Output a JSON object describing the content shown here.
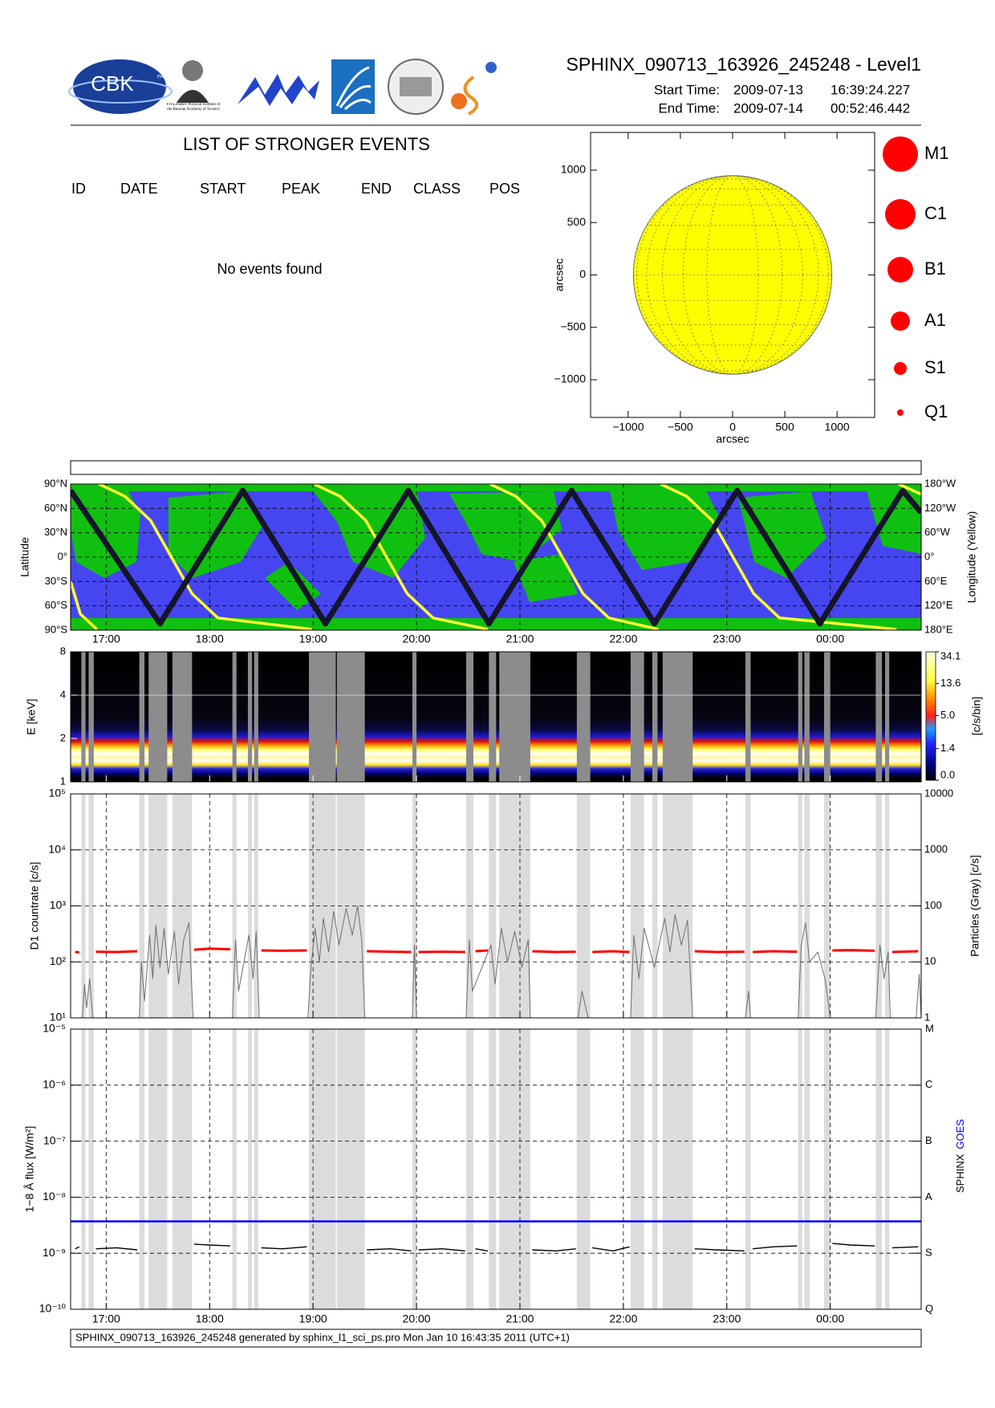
{
  "header": {
    "title": "SPHINX_090713_163926_245248 - Level1",
    "start_label": "Start Time:",
    "start_date": "2009-07-13",
    "start_time": "16:39:24.227",
    "end_label": "End Time:",
    "end_date": "2009-07-14",
    "end_time": "00:52:46.442",
    "logo_cbk": "CBK",
    "logo_pan": "PAN",
    "logo_lebedev": "P.N.Lebedev Physical Institute of the Russian Academy of Science"
  },
  "events": {
    "title": "LIST OF STRONGER EVENTS",
    "columns": [
      "ID",
      "DATE",
      "START",
      "PEAK",
      "END",
      "CLASS",
      "POS"
    ],
    "message": "No events found"
  },
  "sun_map": {
    "xlim": [
      -1360,
      1360
    ],
    "ylim": [
      -1360,
      1360
    ],
    "xticks": [
      {
        "value": -1000,
        "label": "−1000"
      },
      {
        "value": -500,
        "label": "−500"
      },
      0,
      500,
      1000
    ],
    "yticks": [
      1000,
      500,
      0,
      {
        "value": -500,
        "label": "−500"
      },
      {
        "value": -1000,
        "label": "−1000"
      }
    ],
    "xlabel": "arcsec",
    "ylabel": "arcsec",
    "radius": 950,
    "disk_color": "#ffff00",
    "legend": [
      "M1",
      "C1",
      "B1",
      "A1",
      "S1",
      "Q1"
    ],
    "legend_color": "#ff0000"
  },
  "time_axis": {
    "xlim": [
      16.656,
      24.879
    ],
    "xticks": [
      {
        "value": 17,
        "label": "17:00"
      },
      {
        "value": 18,
        "label": "18:00"
      },
      {
        "value": 19,
        "label": "19:00"
      },
      {
        "value": 20,
        "label": "20:00"
      },
      {
        "value": 21,
        "label": "21:00"
      },
      {
        "value": 22,
        "label": "22:00"
      },
      {
        "value": 23,
        "label": "23:00"
      },
      {
        "value": 24,
        "label": "00:00"
      }
    ]
  },
  "data_gaps": [
    [
      16.76,
      16.8
    ],
    [
      16.83,
      16.88
    ],
    [
      17.32,
      17.37
    ],
    [
      17.41,
      17.59
    ],
    [
      17.64,
      17.83
    ],
    [
      18.22,
      18.26
    ],
    [
      18.37,
      18.41
    ],
    [
      18.43,
      18.47
    ],
    [
      18.96,
      19.22
    ],
    [
      19.23,
      19.5
    ],
    [
      19.96,
      20.0
    ],
    [
      20.48,
      20.55
    ],
    [
      20.7,
      20.77
    ],
    [
      20.8,
      21.1
    ],
    [
      21.55,
      21.68
    ],
    [
      22.07,
      22.2
    ],
    [
      22.28,
      22.33
    ],
    [
      22.38,
      22.67
    ],
    [
      23.18,
      23.23
    ],
    [
      23.69,
      23.73
    ],
    [
      23.75,
      23.8
    ],
    [
      23.94,
      24.0
    ],
    [
      24.44,
      24.5
    ],
    [
      24.53,
      24.57
    ]
  ],
  "orbit": {
    "ylabel": "Latitude",
    "y2label": "Longitude (Yellow)",
    "ylim": [
      -90,
      90
    ],
    "yticks": [
      {
        "value": 90,
        "label": "90°N"
      },
      {
        "value": 60,
        "label": "60°N"
      },
      {
        "value": 30,
        "label": "30°N"
      },
      {
        "value": 0,
        "label": "0°"
      },
      {
        "value": -30,
        "label": "30°S"
      },
      {
        "value": -60,
        "label": "60°S"
      },
      {
        "value": -90,
        "label": "90°S"
      }
    ],
    "y2lim": [
      -180,
      180
    ],
    "y2ticks": [
      {
        "value": 180,
        "label": "180°W"
      },
      {
        "value": 120,
        "label": "120°W"
      },
      {
        "value": 60,
        "label": "60°W"
      },
      {
        "value": 0,
        "label": "0°"
      },
      {
        "value": -60,
        "label": "60°E"
      },
      {
        "value": -120,
        "label": "120°E"
      },
      {
        "value": -180,
        "label": "180°E"
      }
    ],
    "track": {
      "color": "#15152a",
      "x": [
        16.656,
        17.52,
        18.32,
        19.12,
        19.92,
        20.7,
        21.5,
        22.3,
        23.1,
        23.9,
        24.7,
        24.879
      ],
      "values": [
        82,
        -82,
        82,
        -82,
        82,
        -82,
        82,
        -82,
        82,
        -82,
        82,
        55
      ]
    },
    "longitude": {
      "color": "#ffff33",
      "axis": "y2",
      "x": [
        16.656,
        16.75,
        16.91,
        16.92,
        16.93,
        17.18,
        17.43,
        17.63,
        17.83,
        18.08,
        18.99,
        19.0,
        19.01,
        19.26,
        19.51,
        19.71,
        19.91,
        20.16,
        20.69,
        20.7,
        20.71,
        20.96,
        21.21,
        21.41,
        21.61,
        21.86,
        22.34,
        22.35,
        22.36,
        22.61,
        22.86,
        23.06,
        23.26,
        23.51,
        24.64,
        24.65,
        24.66,
        24.879
      ],
      "values": [
        -60,
        -140,
        -178,
        null,
        180,
        150,
        90,
        0,
        -90,
        -150,
        -178,
        null,
        180,
        150,
        90,
        0,
        -90,
        -150,
        -178,
        null,
        180,
        150,
        90,
        0,
        -90,
        -150,
        -178,
        null,
        180,
        150,
        90,
        0,
        -90,
        -150,
        -178,
        null,
        180,
        155
      ]
    }
  },
  "spectrum": {
    "ylabel": "E [keV]",
    "ylim": [
      1,
      8
    ],
    "yticks": [
      8,
      4,
      2,
      1
    ],
    "colorbar_label": "[c/s/bin]",
    "cbar_lim": [
      0,
      34.1
    ],
    "cbar_ticks": [
      34.1,
      13.6,
      {
        "value": 5,
        "label": "5.0"
      },
      1.4,
      {
        "value": 0,
        "label": "0.0"
      }
    ]
  },
  "countrate": {
    "ylabel": "D1 countrate [c/s]",
    "y2label": "Particles (Gray) [c/s]",
    "ylim": [
      10,
      100000
    ],
    "yticks": [
      {
        "value": 100000,
        "label": "10⁵"
      },
      {
        "value": 10000,
        "label": "10⁴"
      },
      {
        "value": 1000,
        "label": "10³"
      },
      {
        "value": 100,
        "label": "10²"
      },
      {
        "value": 10,
        "label": "10¹"
      }
    ],
    "y2lim": [
      1,
      10000
    ],
    "y2ticks": [
      10000,
      1000,
      100,
      10,
      1
    ],
    "counts": {
      "color": "#ff0000",
      "x": [
        16.7,
        16.74,
        16.76,
        16.9,
        17.1,
        17.3,
        17.34,
        17.85,
        18.0,
        18.2,
        18.24,
        18.5,
        18.7,
        18.94,
        18.97,
        19.52,
        19.75,
        19.95,
        19.98,
        20.02,
        20.25,
        20.47,
        20.5,
        20.57,
        20.69,
        20.72,
        21.12,
        21.35,
        21.54,
        21.6,
        21.7,
        21.9,
        22.06,
        22.1,
        22.69,
        22.9,
        23.17,
        23.2,
        23.25,
        23.45,
        23.68,
        23.7,
        24.02,
        24.2,
        24.43,
        24.46,
        24.6,
        24.85
      ],
      "values": [
        150,
        148,
        null,
        152,
        150,
        155,
        null,
        165,
        172,
        168,
        null,
        160,
        158,
        160,
        null,
        155,
        152,
        150,
        null,
        150,
        152,
        150,
        null,
        155,
        160,
        null,
        155,
        150,
        152,
        null,
        150,
        155,
        150,
        null,
        155,
        150,
        152,
        null,
        150,
        155,
        152,
        null,
        160,
        162,
        158,
        null,
        150,
        155
      ]
    },
    "particles": {
      "color": "#6e6e6e",
      "axis": "y2",
      "x": [
        16.77,
        16.79,
        16.81,
        16.84,
        16.87,
        16.9,
        17.32,
        17.34,
        17.37,
        17.42,
        17.45,
        17.48,
        17.52,
        17.56,
        17.6,
        17.66,
        17.7,
        17.75,
        17.8,
        17.84,
        17.9,
        18.22,
        18.25,
        18.28,
        18.38,
        18.42,
        18.45,
        18.48,
        18.6,
        18.95,
        18.98,
        19.02,
        19.06,
        19.1,
        19.15,
        19.2,
        19.25,
        19.32,
        19.38,
        19.43,
        19.47,
        19.5,
        19.6,
        19.96,
        19.98,
        20.0,
        20.2,
        20.48,
        20.51,
        20.54,
        20.72,
        20.76,
        20.82,
        20.88,
        20.95,
        21.02,
        21.08,
        21.1,
        21.3,
        21.56,
        21.6,
        21.66,
        21.8,
        22.07,
        22.1,
        22.15,
        22.2,
        22.3,
        22.4,
        22.45,
        22.5,
        22.56,
        22.62,
        22.67,
        22.9,
        23.18,
        23.21,
        23.23,
        23.5,
        23.69,
        23.72,
        23.76,
        23.8,
        23.88,
        23.95,
        24.0,
        24.2,
        24.44,
        24.48,
        24.52,
        24.56,
        24.58,
        24.7,
        24.83,
        24.86,
        24.879
      ],
      "values": [
        1,
        4,
        1.5,
        5,
        1,
        null,
        1,
        10,
        2,
        30,
        5,
        45,
        8,
        40,
        6,
        35,
        4,
        25,
        50,
        1,
        null,
        1,
        25,
        3,
        30,
        5,
        35,
        1,
        null,
        1,
        8,
        40,
        10,
        60,
        15,
        80,
        20,
        90,
        30,
        100,
        25,
        1,
        null,
        1,
        20,
        1,
        null,
        1,
        25,
        3,
        20,
        4,
        40,
        10,
        35,
        8,
        25,
        1,
        null,
        1,
        3,
        1,
        null,
        1,
        30,
        5,
        40,
        8,
        60,
        15,
        70,
        20,
        55,
        1,
        null,
        1,
        3,
        1,
        null,
        1,
        20,
        50,
        10,
        15,
        5,
        1,
        null,
        1,
        20,
        5,
        15,
        1,
        null,
        1,
        6,
        1
      ]
    }
  },
  "flux": {
    "ylabel": "1−8 Å flux [W/m²]",
    "ylim": [
      1e-10,
      1e-05
    ],
    "yticks": [
      {
        "value": 1e-05,
        "label": "10⁻⁵"
      },
      {
        "value": 1e-06,
        "label": "10⁻⁶"
      },
      {
        "value": 1e-07,
        "label": "10⁻⁷"
      },
      {
        "value": 1e-08,
        "label": "10⁻⁸"
      },
      {
        "value": 1e-09,
        "label": "10⁻⁹"
      },
      {
        "value": 1e-10,
        "label": "10⁻¹⁰"
      }
    ],
    "class_ticks": [
      {
        "value": 1e-05,
        "label": "M"
      },
      {
        "value": 1e-06,
        "label": "C"
      },
      {
        "value": 1e-07,
        "label": "B"
      },
      {
        "value": 1e-08,
        "label": "A"
      },
      {
        "value": 1e-09,
        "label": "S"
      },
      {
        "value": 1e-10,
        "label": "Q"
      }
    ],
    "series": [
      {
        "name": "SPHINX",
        "color": "#000000",
        "x": [
          16.7,
          16.74,
          16.76,
          16.9,
          17.1,
          17.3,
          17.34,
          17.85,
          18.0,
          18.2,
          18.24,
          18.5,
          18.7,
          18.94,
          18.97,
          19.52,
          19.75,
          19.95,
          19.98,
          20.02,
          20.25,
          20.47,
          20.5,
          20.57,
          20.69,
          20.72,
          21.12,
          21.35,
          21.54,
          21.6,
          21.7,
          21.9,
          22.06,
          22.1,
          22.69,
          22.9,
          23.17,
          23.2,
          23.25,
          23.45,
          23.68,
          23.7,
          24.02,
          24.2,
          24.43,
          24.46,
          24.6,
          24.85
        ],
        "values": [
          1.2e-09,
          1.3e-09,
          null,
          1.2e-09,
          1.25e-09,
          1.15e-09,
          null,
          1.45e-09,
          1.4e-09,
          1.35e-09,
          null,
          1.25e-09,
          1.2e-09,
          1.3e-09,
          null,
          1.15e-09,
          1.2e-09,
          1.1e-09,
          null,
          1.15e-09,
          1.2e-09,
          1.1e-09,
          null,
          1.2e-09,
          1.1e-09,
          null,
          1.15e-09,
          1.1e-09,
          1.2e-09,
          null,
          1.25e-09,
          1.1e-09,
          1.3e-09,
          null,
          1.2e-09,
          1.15e-09,
          1.1e-09,
          null,
          1.2e-09,
          1.3e-09,
          1.35e-09,
          null,
          1.5e-09,
          1.4e-09,
          1.35e-09,
          null,
          1.25e-09,
          1.3e-09
        ]
      },
      {
        "name": "GOES",
        "color": "#0000ff",
        "x": [
          16.656,
          24.879
        ],
        "values": [
          3.7e-09,
          3.7e-09
        ]
      }
    ]
  },
  "footer": {
    "text": "SPHINX_090713_163926_245248 generated by sphinx_l1_sci_ps.pro Mon Jan 10 16:43:35 2011 (UTC+1)"
  }
}
